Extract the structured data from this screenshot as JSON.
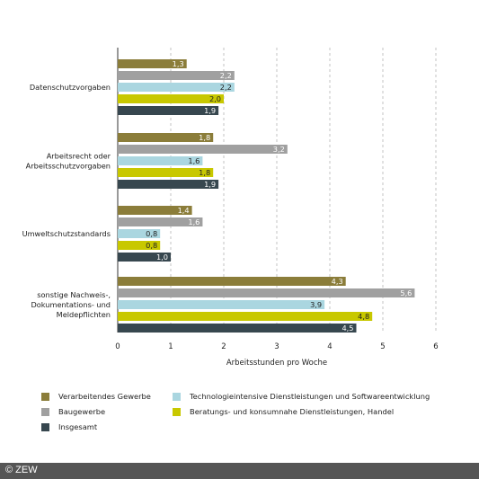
{
  "chart_data": {
    "type": "bar",
    "orientation": "horizontal",
    "categories": [
      "Datenschutzvorgaben",
      "Arbeitsrecht oder Arbeitsschutzvorgaben",
      "Umweltschutzstandards",
      "sonstige Nachweis-, Dokumentations- und Meldepflichten"
    ],
    "category_lines": [
      [
        "Datenschutzvorgaben"
      ],
      [
        "Arbeitsrecht oder",
        "Arbeitsschutzvorgaben"
      ],
      [
        "Umweltschutzstandards"
      ],
      [
        "sonstige Nachweis-,",
        "Dokumentations- und",
        "Meldepflichten"
      ]
    ],
    "series": [
      {
        "name": "Verarbeitendes Gewerbe",
        "color": "#8b7d3a",
        "label_color": "#ffffff",
        "values": [
          1.3,
          1.8,
          1.4,
          4.3
        ],
        "labels": [
          "1,3",
          "1,8",
          "1,4",
          "4,3"
        ]
      },
      {
        "name": "Baugewerbe",
        "color": "#a0a0a0",
        "label_color": "#ffffff",
        "values": [
          2.2,
          3.2,
          1.6,
          5.6
        ],
        "labels": [
          "2,2",
          "3,2",
          "1,6",
          "5,6"
        ]
      },
      {
        "name": "Technologieintensive Dienstleistungen und Softwareentwicklung",
        "color": "#aad6e0",
        "label_color": "#222222",
        "values": [
          2.2,
          1.6,
          0.8,
          3.9
        ],
        "labels": [
          "2,2",
          "1,6",
          "0,8",
          "3,9"
        ]
      },
      {
        "name": "Beratungs- und konsumnahe Dienstleistungen, Handel",
        "color": "#c8c800",
        "label_color": "#222222",
        "values": [
          2.0,
          1.8,
          0.8,
          4.8
        ],
        "labels": [
          "2,0",
          "1,8",
          "0,8",
          "4,8"
        ]
      },
      {
        "name": "Insgesamt",
        "color": "#37474f",
        "label_color": "#ffffff",
        "values": [
          1.9,
          1.9,
          1.0,
          4.5
        ],
        "labels": [
          "1,9",
          "1,9",
          "1,0",
          "4,5"
        ]
      }
    ],
    "xlim": [
      0,
      6
    ],
    "xticks": [
      "0",
      "1",
      "2",
      "3",
      "4",
      "5",
      "6"
    ],
    "xlabel": "Arbeitsstunden pro Woche",
    "grid": "vertical dashed",
    "legend_position": "bottom"
  },
  "legend": [
    {
      "label": "Verarbeitendes Gewerbe",
      "color": "#8b7d3a"
    },
    {
      "label": "Technologieintensive Dienstleistungen und Softwareentwicklung",
      "color": "#aad6e0"
    },
    {
      "label": "Baugewerbe",
      "color": "#a0a0a0"
    },
    {
      "label": "Beratungs- und konsumnahe Dienstleistungen, Handel",
      "color": "#c8c800"
    },
    {
      "label": "Insgesamt",
      "color": "#37474f"
    }
  ],
  "footer": {
    "text": "© ZEW",
    "color": "#555555"
  }
}
